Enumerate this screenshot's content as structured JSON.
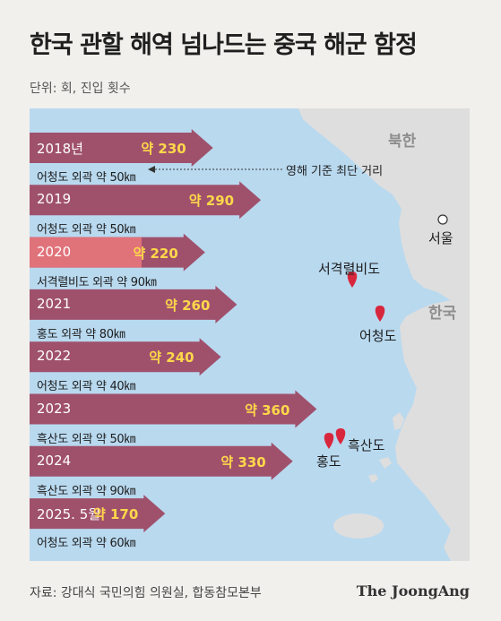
{
  "title": "한국 관할 해역 넘나드는 중국 해군 함정",
  "unit_note": "단위: 회, 진입 횟수",
  "source": "자료: 강대식 국민의힘 의원실, 합동참모본부",
  "brand": "The JoongAng",
  "map": {
    "country_north": "북한",
    "country_south": "한국",
    "seoul": "서울",
    "places": {
      "seogyeok": "서격렬비도",
      "eocheong": "어청도",
      "heuksan": "흑산도",
      "hong": "홍도"
    },
    "shortest_note": "영해 기준 최단 거리"
  },
  "colors": {
    "sea": "#b9d9ef",
    "land": "#dedede",
    "arrow": "#9c4561",
    "arrow_highlight": "#e0727a",
    "value_text": "#ffd84a",
    "marker": "#d8273d"
  },
  "chart_data": {
    "type": "bar",
    "categories": [
      "2018년",
      "2019",
      "2020",
      "2021",
      "2022",
      "2023",
      "2024",
      "2025. 5월"
    ],
    "values": [
      230,
      290,
      220,
      260,
      240,
      360,
      330,
      170
    ],
    "value_labels": [
      "약 230",
      "약 290",
      "약 220",
      "약 260",
      "약 240",
      "약 360",
      "약 330",
      "약 170"
    ],
    "distances": [
      "어청도 외곽 약 50㎞",
      "어청도 외곽 약 50㎞",
      "서격렬비도 외곽 약 90㎞",
      "홍도 외곽 약 80㎞",
      "어청도 외곽 약 40㎞",
      "흑산도 외곽 약 50㎞",
      "흑산도 외곽 약 90㎞",
      "어청도 외곽 약 60㎞"
    ],
    "title": "한국 관할 해역 넘나드는 중국 해군 함정",
    "unit": "회"
  }
}
